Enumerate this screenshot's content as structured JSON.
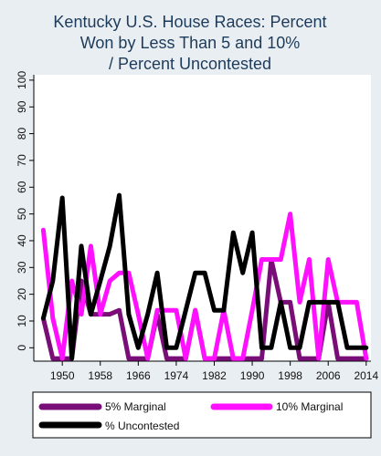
{
  "chart_data": {
    "type": "line",
    "title_lines": [
      "Kentucky U.S. House Races: Percent",
      "Won by Less Than 5 and 10%",
      "/ Percent Uncontested"
    ],
    "xlabel": "",
    "ylabel": "",
    "x_ticks": [
      "1950",
      "1958",
      "1966",
      "1974",
      "1982",
      "1990",
      "1998",
      "2006",
      "2014"
    ],
    "y_ticks": [
      "0",
      "10",
      "20",
      "30",
      "40",
      "50",
      "60",
      "70",
      "80",
      "90",
      "100"
    ],
    "xlim": [
      1944,
      2015
    ],
    "ylim": [
      -5,
      102
    ],
    "grid": false,
    "legend_position": "bottom",
    "x": [
      1946,
      1948,
      1950,
      1952,
      1954,
      1956,
      1958,
      1960,
      1962,
      1964,
      1966,
      1968,
      1970,
      1972,
      1974,
      1976,
      1978,
      1980,
      1982,
      1984,
      1986,
      1988,
      1990,
      1992,
      1994,
      1996,
      1998,
      2000,
      2002,
      2004,
      2006,
      2008,
      2010,
      2012,
      2014
    ],
    "series": [
      {
        "name": "5% Marginal",
        "color": "#7a0e78",
        "values": [
          11,
          -4,
          -4,
          -4,
          25,
          12.5,
          12.5,
          12.5,
          14,
          -4,
          -4,
          -4,
          12.5,
          -4,
          -4,
          -4,
          14,
          -4,
          -4,
          -4,
          -4,
          -4,
          -4,
          -4,
          33,
          17,
          17,
          -4,
          -4,
          -4,
          17,
          -4,
          -4,
          -4,
          -4
        ]
      },
      {
        "name": "10% Marginal",
        "color": "#ff10ff",
        "values": [
          44,
          11,
          -4,
          25,
          12.5,
          38,
          12.5,
          25,
          28,
          28,
          12.5,
          -4,
          14,
          14,
          14,
          -4,
          14,
          -4,
          -4,
          14,
          -4,
          -4,
          14,
          33,
          33,
          33,
          50,
          17,
          33,
          -4,
          33,
          17,
          17,
          17,
          -4
        ]
      },
      {
        "name": "% Uncontested",
        "color": "#000000",
        "values": [
          11,
          25,
          56,
          -4,
          38,
          12.5,
          25,
          38,
          57,
          12.5,
          0,
          12.5,
          28,
          0,
          0,
          14,
          28,
          28,
          14,
          14,
          43,
          28,
          43,
          0,
          0,
          17,
          0,
          0,
          17,
          17,
          17,
          17,
          0,
          0,
          0
        ]
      }
    ]
  }
}
